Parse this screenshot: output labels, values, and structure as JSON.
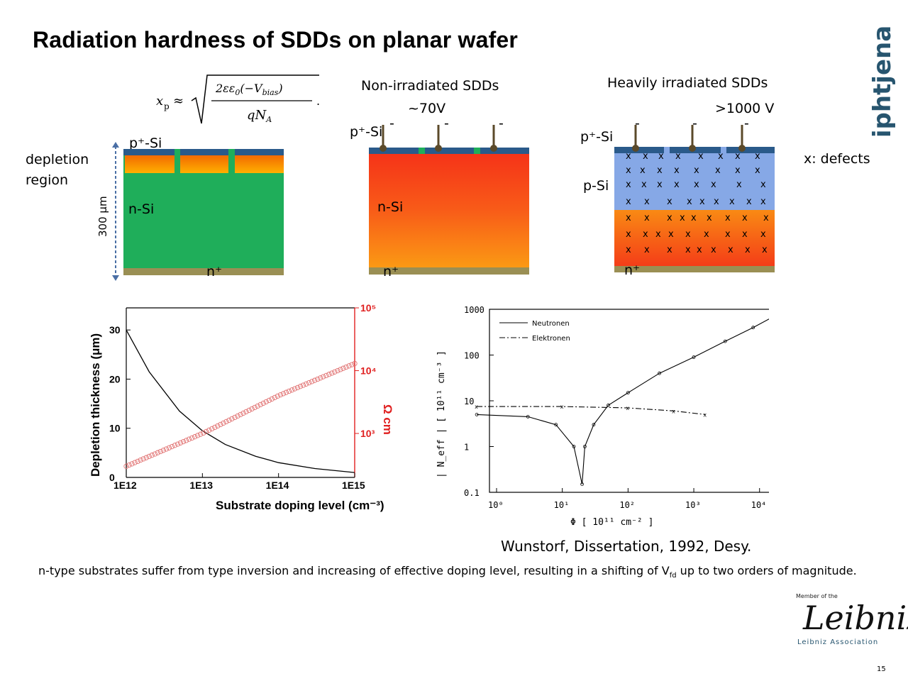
{
  "title": "Radiation hardness of SDDs on planar wafer",
  "logo": "iphtjena",
  "equation": "x_p ≈ √(2εε0(−Vbias) / qN_A)",
  "depletion_region": [
    "depletion",
    "region"
  ],
  "thickness_label": "300 μm",
  "left_wafer": {
    "top_label": "p⁺-Si",
    "bulk_label": "n-Si",
    "bottom_label": "n⁺"
  },
  "middle_wafer": {
    "heading": "Non-irradiated SDDs",
    "voltage": "~70V",
    "top_label": "p⁺-Si",
    "bulk_label": "n-Si",
    "bottom_label": "n⁺",
    "minus": "-"
  },
  "right_wafer": {
    "heading": "Heavily irradiated SDDs",
    "voltage": ">1000 V",
    "top_label": "p⁺-Si",
    "p_label": "p-Si",
    "bottom_label": "n⁺",
    "defects_note": "x: defects",
    "minus": "-",
    "defect_mark": "x"
  },
  "chart_data": [
    {
      "type": "line",
      "xlabel": "Substrate doping level (cm⁻³)",
      "ylabel": "Depletion thickness (μm)",
      "y2label": "Ω cm",
      "x_ticks": [
        "1E12",
        "1E13",
        "1E14",
        "1E15"
      ],
      "y_ticks": [
        "0",
        "10",
        "20",
        "30"
      ],
      "y2_ticks": [
        "10³",
        "10⁴",
        "10⁵"
      ],
      "series": [
        {
          "x": [
            1000000000000.0,
            2000000000000.0,
            5000000000000.0,
            10000000000000.0,
            20000000000000.0,
            50000000000000.0,
            100000000000000.0,
            300000000000000.0,
            1000000000000000.0
          ],
          "values": [
            30,
            21.5,
            13.5,
            9.5,
            6.7,
            4.3,
            3.0,
            1.8,
            1.0
          ]
        },
        {
          "x": [
            1000000000000.0,
            10000000000000.0,
            100000000000000.0,
            1000000000000000.0
          ],
          "values": [
            300,
            1000,
            4000,
            13000
          ]
        }
      ],
      "colors": {
        "thickness": "#000000",
        "resistivity": "#e07070"
      }
    },
    {
      "type": "scatter",
      "xlabel": "Φ  [ 10¹¹ cm⁻² ]",
      "ylabel": "| N_eff |  [ 10¹¹ cm⁻³ ]",
      "x_ticks": [
        "10⁰",
        "10¹",
        "10²",
        "10³",
        "10⁴"
      ],
      "y_ticks": [
        "0.1",
        "1",
        "10",
        "100",
        "1000"
      ],
      "legend": [
        "Neutronen",
        "Elektronen"
      ],
      "legend_position": "top-left",
      "series": [
        {
          "name": "Neutronen",
          "x": [
            0.5,
            3,
            8,
            15,
            20,
            22,
            30,
            50,
            100,
            300,
            1000,
            3000,
            8000,
            15000
          ],
          "values": [
            5,
            4.5,
            3,
            1,
            0.15,
            1,
            3,
            8,
            15,
            40,
            90,
            200,
            400,
            650
          ]
        },
        {
          "name": "Elektronen",
          "x": [
            0.5,
            10,
            100,
            500,
            1500
          ],
          "values": [
            7.5,
            7.5,
            7,
            6,
            5
          ]
        }
      ]
    }
  ],
  "reference": "Wunstorf, Dissertation, 1992, Desy.",
  "bottom_text": "n-type substrates suffer from type inversion and increasing of effective doping level, resulting in a shifting of V",
  "bottom_text_sub": "fd",
  "bottom_text_end": " up to two orders of magnitude.",
  "leibniz": {
    "member": "Member of the",
    "script": "Leibniz",
    "assoc": "Leibniz Association"
  },
  "page_number": "15"
}
